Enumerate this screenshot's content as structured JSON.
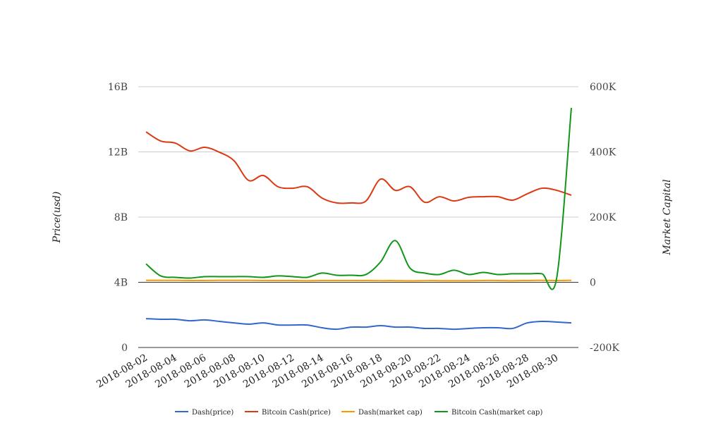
{
  "chart_data": {
    "type": "line",
    "title": "",
    "xlabel": "",
    "ylabel": "Price(usd)",
    "y2label": "Market Capital",
    "ylim": [
      0,
      16000000000
    ],
    "y2lim": [
      -200000,
      600000
    ],
    "yticks": [
      "0",
      "4B",
      "8B",
      "12B",
      "16B"
    ],
    "y2ticks": [
      "-200K",
      "0",
      "200K",
      "400K",
      "600K"
    ],
    "grid": true,
    "legend": "bottom",
    "x": [
      "2018-08-02",
      "2018-08-03",
      "2018-08-04",
      "2018-08-05",
      "2018-08-06",
      "2018-08-07",
      "2018-08-08",
      "2018-08-09",
      "2018-08-10",
      "2018-08-11",
      "2018-08-12",
      "2018-08-13",
      "2018-08-14",
      "2018-08-15",
      "2018-08-16",
      "2018-08-17",
      "2018-08-18",
      "2018-08-19",
      "2018-08-20",
      "2018-08-21",
      "2018-08-22",
      "2018-08-23",
      "2018-08-24",
      "2018-08-25",
      "2018-08-26",
      "2018-08-27",
      "2018-08-28",
      "2018-08-29",
      "2018-08-30",
      "2018-08-31"
    ],
    "xticks": [
      "2018-08-02",
      "2018-08-04",
      "2018-08-06",
      "2018-08-08",
      "2018-08-10",
      "2018-08-12",
      "2018-08-14",
      "2018-08-16",
      "2018-08-18",
      "2018-08-20",
      "2018-08-22",
      "2018-08-24",
      "2018-08-26",
      "2018-08-28",
      "2018-08-30"
    ],
    "series": [
      {
        "name": "Dash(price)",
        "axis": "left",
        "color": "#3366cc",
        "values": [
          1770000000.0,
          1730000000.0,
          1730000000.0,
          1640000000.0,
          1690000000.0,
          1600000000.0,
          1510000000.0,
          1430000000.0,
          1510000000.0,
          1380000000.0,
          1380000000.0,
          1380000000.0,
          1210000000.0,
          1120000000.0,
          1250000000.0,
          1250000000.0,
          1340000000.0,
          1250000000.0,
          1250000000.0,
          1170000000.0,
          1170000000.0,
          1120000000.0,
          1170000000.0,
          1210000000.0,
          1210000000.0,
          1170000000.0,
          1510000000.0,
          1600000000.0,
          1560000000.0,
          1510000000.0
        ]
      },
      {
        "name": "Bitcoin Cash(price)",
        "axis": "left",
        "color": "#dc3912",
        "values": [
          13230000000.0,
          12670000000.0,
          12540000000.0,
          12060000000.0,
          12280000000.0,
          11980000000.0,
          11460000000.0,
          10250000000.0,
          10550000000.0,
          9860000000.0,
          9770000000.0,
          9860000000.0,
          9170000000.0,
          8870000000.0,
          8870000000.0,
          8990000000.0,
          10330000000.0,
          9640000000.0,
          9860000000.0,
          8910000000.0,
          9250000000.0,
          8990000000.0,
          9210000000.0,
          9250000000.0,
          9250000000.0,
          9040000000.0,
          9430000000.0,
          9770000000.0,
          9640000000.0,
          9340000000.0
        ]
      },
      {
        "name": "Dash(market cap)",
        "axis": "right",
        "color": "#ff9900",
        "values": [
          6000,
          6000,
          6000,
          5500,
          5500,
          6000,
          6000,
          6000,
          5500,
          5500,
          5500,
          5000,
          5500,
          5500,
          5500,
          5500,
          5000,
          5000,
          4500,
          5000,
          5000,
          5000,
          5000,
          5500,
          5500,
          5000,
          5500,
          6000,
          5500,
          6000
        ]
      },
      {
        "name": "Bitcoin Cash(market cap)",
        "axis": "right",
        "color": "#109618",
        "values": [
          56500,
          19600,
          15200,
          13000,
          17400,
          17400,
          17400,
          17400,
          15200,
          19600,
          17400,
          15200,
          28300,
          21700,
          21700,
          23900,
          63000,
          128000,
          43500,
          28300,
          23900,
          37000,
          23900,
          30400,
          23900,
          26100,
          26100,
          26100,
          13000,
          535000
        ]
      }
    ]
  }
}
